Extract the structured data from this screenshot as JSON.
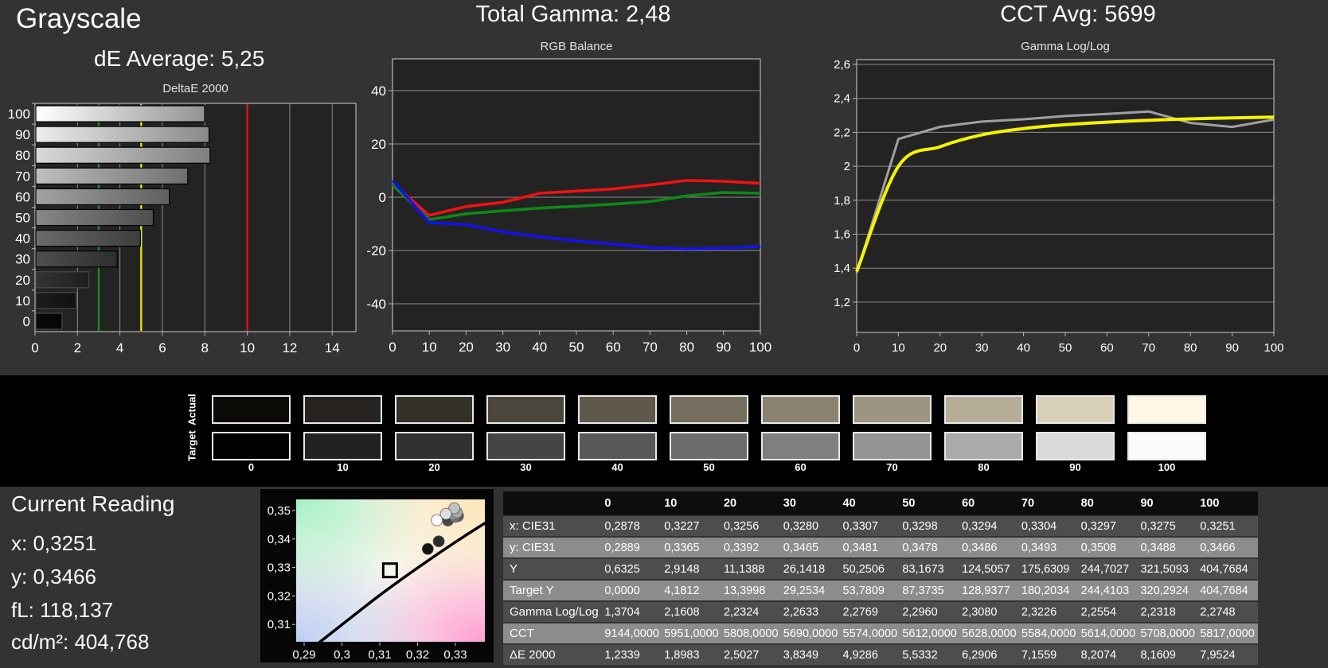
{
  "titles": {
    "grayscale": "Grayscale",
    "de_average": "dE Average: 5,25",
    "total_gamma": "Total Gamma: 2,48",
    "cct_avg": "CCT Avg: 5699"
  },
  "current_reading": {
    "title": "Current Reading",
    "x": "x: 0,3251",
    "y": "y: 0,3466",
    "fl": "fL: 118,137",
    "cdm2": "cd/m²: 404,768"
  },
  "swatches": {
    "row_labels": [
      "Actual",
      "Target"
    ],
    "levels": [
      "0",
      "10",
      "20",
      "30",
      "40",
      "50",
      "60",
      "70",
      "80",
      "90",
      "100"
    ],
    "actual_colors": [
      "#0c0a07",
      "#252220",
      "#34302a",
      "#4b463c",
      "#5f594b",
      "#756e5e",
      "#8a8271",
      "#9d9482",
      "#b6ad98",
      "#d7cfb7",
      "#fdf8e4"
    ],
    "target_colors": [
      "#010101",
      "#222222",
      "#313131",
      "#454545",
      "#585858",
      "#6c6c6c",
      "#7f7f7f",
      "#949494",
      "#aaaaaa",
      "#dadada",
      "#fbfbfb"
    ]
  },
  "chart_data": [
    {
      "type": "bar",
      "title": "DeltaE 2000",
      "orientation": "horizontal",
      "categories": [
        "100",
        "90",
        "80",
        "70",
        "60",
        "50",
        "40",
        "30",
        "20",
        "10",
        "0"
      ],
      "values": [
        7.9524,
        8.1609,
        8.2074,
        7.1559,
        6.2906,
        5.5332,
        4.9286,
        3.8349,
        2.5027,
        1.8983,
        1.2339
      ],
      "bar_colors": [
        "#ffffff",
        "#ededed",
        "#dadada",
        "#bfbfbf",
        "#a3a3a3",
        "#878787",
        "#6b6b6b",
        "#4f4f4f",
        "#343434",
        "#1d1d1d",
        "#0a0a0a"
      ],
      "x_tick_labels": [
        "0",
        "2",
        "4",
        "6",
        "8",
        "10",
        "12",
        "14"
      ],
      "x_tick_values": [
        0,
        2,
        4,
        6,
        8,
        10,
        12,
        14
      ],
      "xlim": [
        0,
        15.1
      ],
      "reference_lines": [
        {
          "name": "green-limit",
          "value": 3,
          "color": "#1e8a1e"
        },
        {
          "name": "yellow-limit",
          "value": 5,
          "color": "#e6e200"
        },
        {
          "name": "red-limit",
          "value": 10,
          "color": "#e01414"
        }
      ]
    },
    {
      "type": "line",
      "title": "RGB Balance",
      "x": [
        0,
        10,
        20,
        30,
        40,
        50,
        60,
        70,
        80,
        90,
        100
      ],
      "x_tick_labels": [
        "0",
        "10",
        "20",
        "30",
        "40",
        "50",
        "60",
        "70",
        "80",
        "90",
        "100"
      ],
      "y_tick_labels": [
        "40",
        "20",
        "0",
        "-20",
        "-40"
      ],
      "y_tick_values": [
        40,
        20,
        0,
        -20,
        -40
      ],
      "ylim": [
        -50,
        52
      ],
      "series": [
        {
          "name": "Red",
          "color": "#ee1212",
          "values": [
            5.2,
            -6.8,
            -3.5,
            -1.9,
            1.5,
            2.3,
            3.1,
            4.6,
            6.3,
            6.0,
            5.2
          ]
        },
        {
          "name": "Green",
          "color": "#0f8818",
          "values": [
            4.6,
            -8.4,
            -6.2,
            -5.1,
            -4.1,
            -3.4,
            -2.6,
            -1.6,
            0.5,
            1.8,
            1.5
          ]
        },
        {
          "name": "Blue",
          "color": "#1212ee",
          "values": [
            6.3,
            -9.5,
            -10.3,
            -13.0,
            -14.8,
            -16.4,
            -17.6,
            -18.9,
            -19.4,
            -19.1,
            -18.5
          ]
        }
      ]
    },
    {
      "type": "line",
      "title": "Gamma Log/Log",
      "x": [
        0,
        10,
        20,
        30,
        40,
        50,
        60,
        70,
        80,
        90,
        100
      ],
      "x_tick_labels": [
        "0",
        "10",
        "20",
        "30",
        "40",
        "50",
        "60",
        "70",
        "80",
        "90",
        "100"
      ],
      "y_tick_labels": [
        "2,6",
        "2,4",
        "2,2",
        "2",
        "1,8",
        "1,6",
        "1,4",
        "1,2"
      ],
      "y_tick_values": [
        2.6,
        2.4,
        2.2,
        2.0,
        1.8,
        1.6,
        1.4,
        1.2
      ],
      "ylim": [
        1.02,
        2.63
      ],
      "series": [
        {
          "name": "Measured",
          "color": "#a0a0a0",
          "smooth": false,
          "width": 3,
          "values": [
            1.3704,
            2.1608,
            2.2324,
            2.2633,
            2.2769,
            2.296,
            2.308,
            2.3226,
            2.2554,
            2.2318,
            2.2748
          ]
        },
        {
          "name": "Target",
          "color": "#f4f400",
          "smooth": true,
          "width": 4,
          "values": [
            1.38,
            2.0,
            2.115,
            2.185,
            2.222,
            2.245,
            2.26,
            2.271,
            2.279,
            2.285,
            2.29
          ]
        }
      ]
    },
    {
      "type": "scatter",
      "title": "CIE 1931 chromaticity (zoomed near white point)",
      "x_tick_labels": [
        "0,29",
        "0,3",
        "0,31",
        "0,32",
        "0,33"
      ],
      "x_tick_values": [
        0.29,
        0.3,
        0.31,
        0.32,
        0.33
      ],
      "y_tick_labels": [
        "0,35",
        "0,34",
        "0,33",
        "0,32",
        "0,31"
      ],
      "y_tick_values": [
        0.35,
        0.34,
        0.33,
        0.32,
        0.31
      ],
      "xlim": [
        0.2879,
        0.3378
      ],
      "ylim": [
        0.3039,
        0.3539
      ],
      "target_point": {
        "x": 0.3127,
        "y": 0.329,
        "marker": "square"
      },
      "points": [
        {
          "level": "0",
          "x": 0.2878,
          "y": 0.2889,
          "color": "#050505"
        },
        {
          "level": "10",
          "x": 0.3227,
          "y": 0.3365,
          "color": "#151515"
        },
        {
          "level": "20",
          "x": 0.3256,
          "y": 0.3392,
          "color": "#2d2d2d"
        },
        {
          "level": "30",
          "x": 0.328,
          "y": 0.3465,
          "color": "#454545"
        },
        {
          "level": "40",
          "x": 0.3307,
          "y": 0.3481,
          "color": "#5e5e5e"
        },
        {
          "level": "50",
          "x": 0.3298,
          "y": 0.3478,
          "color": "#777777"
        },
        {
          "level": "60",
          "x": 0.3294,
          "y": 0.3486,
          "color": "#909090"
        },
        {
          "level": "70",
          "x": 0.3304,
          "y": 0.3493,
          "color": "#a9a9a9"
        },
        {
          "level": "80",
          "x": 0.3297,
          "y": 0.3508,
          "color": "#c2c2c2"
        },
        {
          "level": "90",
          "x": 0.3275,
          "y": 0.3488,
          "color": "#dedede"
        },
        {
          "level": "100",
          "x": 0.3251,
          "y": 0.3466,
          "color": "#ffffff"
        }
      ],
      "locus": [
        [
          0.2931,
          0.3027
        ],
        [
          0.3064,
          0.3166
        ],
        [
          0.3135,
          0.3237
        ],
        [
          0.3221,
          0.3318
        ],
        [
          0.3324,
          0.341
        ],
        [
          0.3451,
          0.3516
        ]
      ]
    }
  ],
  "table": {
    "headers": [
      "0",
      "10",
      "20",
      "30",
      "40",
      "50",
      "60",
      "70",
      "80",
      "90",
      "100"
    ],
    "rows": [
      {
        "label": "x: CIE31",
        "shade": "dark",
        "values": [
          "0,2878",
          "0,3227",
          "0,3256",
          "0,3280",
          "0,3307",
          "0,3298",
          "0,3294",
          "0,3304",
          "0,3297",
          "0,3275",
          "0,3251"
        ]
      },
      {
        "label": "y: CIE31",
        "shade": "light",
        "values": [
          "0,2889",
          "0,3365",
          "0,3392",
          "0,3465",
          "0,3481",
          "0,3478",
          "0,3486",
          "0,3493",
          "0,3508",
          "0,3488",
          "0,3466"
        ]
      },
      {
        "label": "Y",
        "shade": "dark",
        "values": [
          "0,6325",
          "2,9148",
          "11,1388",
          "26,1418",
          "50,2506",
          "83,1673",
          "124,5057",
          "175,6309",
          "244,7027",
          "321,5093",
          "404,7684"
        ]
      },
      {
        "label": "Target Y",
        "shade": "light",
        "values": [
          "0,0000",
          "4,1812",
          "13,3998",
          "29,2534",
          "53,7809",
          "87,3735",
          "128,9377",
          "180,2034",
          "244,4103",
          "320,2924",
          "404,7684"
        ]
      },
      {
        "label": "Gamma Log/Log",
        "shade": "dark",
        "values": [
          "1,3704",
          "2,1608",
          "2,2324",
          "2,2633",
          "2,2769",
          "2,2960",
          "2,3080",
          "2,3226",
          "2,2554",
          "2,2318",
          "2,2748"
        ]
      },
      {
        "label": "CCT",
        "shade": "light",
        "values": [
          "9144,0000",
          "5951,0000",
          "5808,0000",
          "5690,0000",
          "5574,0000",
          "5612,0000",
          "5628,0000",
          "5584,0000",
          "5614,0000",
          "5708,0000",
          "5817,0000"
        ]
      },
      {
        "label": "ΔE 2000",
        "shade": "dark",
        "values": [
          "1,2339",
          "1,8983",
          "2,5027",
          "3,8349",
          "4,9286",
          "5,5332",
          "6,2906",
          "7,1559",
          "8,2074",
          "8,1609",
          "7,9524"
        ]
      }
    ]
  },
  "colors": {
    "page_bg": "#333333",
    "band_bg": "#000000",
    "plot_bg": "#232323",
    "plot_border": "#b5b5b5",
    "grid": "#8c8c8c",
    "text": "#ffffff",
    "table_header_bg": "#0d0d0d",
    "table_row_dark": "#4d4d4d",
    "table_row_light": "#8c8c8c",
    "cie_panel_bg": "#060606"
  }
}
